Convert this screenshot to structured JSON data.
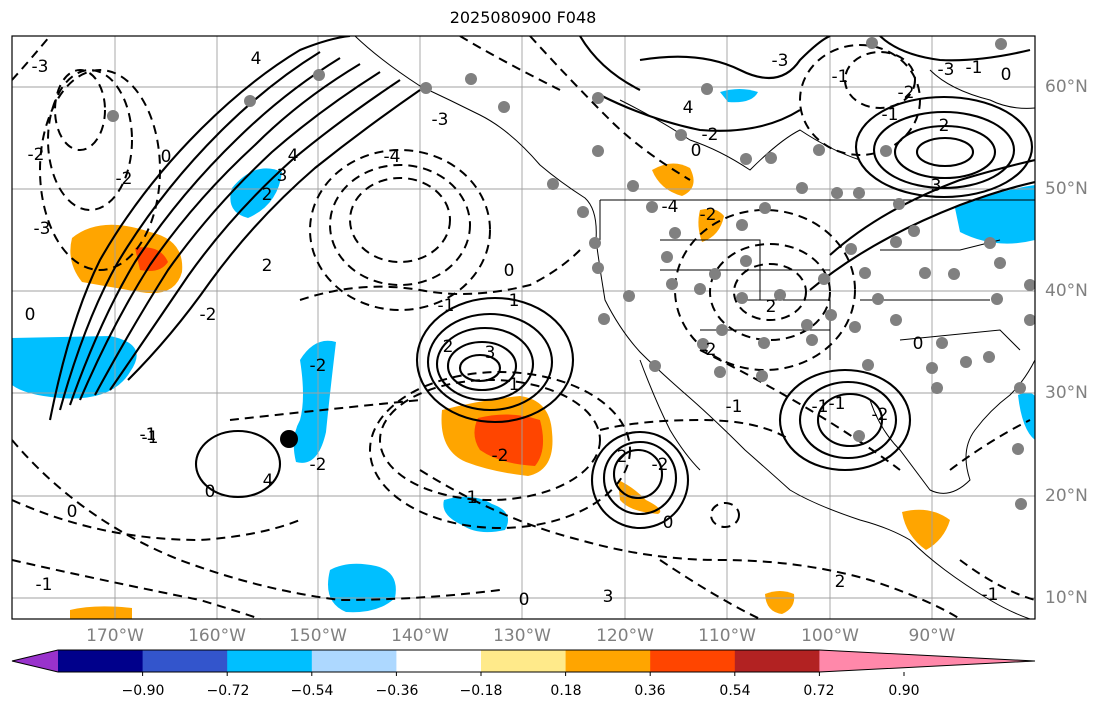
{
  "title": "2025080900 F048",
  "lon_labels": [
    "170°W",
    "160°W",
    "150°W",
    "140°W",
    "130°W",
    "120°W",
    "110°W",
    "100°W",
    "90°W"
  ],
  "lat_labels": [
    "60°N",
    "50°N",
    "40°N",
    "30°N",
    "20°N",
    "10°N"
  ],
  "colorbar": {
    "tick_labels": [
      "−0.90",
      "−0.72",
      "−0.54",
      "−0.36",
      "−0.18",
      "0.18",
      "0.36",
      "0.54",
      "0.72",
      "0.90"
    ],
    "colors": [
      "#9932cc",
      "#00008b",
      "#3355cc",
      "#00bfff",
      "#add8ff",
      "#ffffff",
      "#ffea8a",
      "#ffa500",
      "#ff4500",
      "#b22222",
      "#ff88aa"
    ]
  },
  "contour_labels": [
    "4",
    "-3",
    "-2",
    "0",
    "-3",
    "-2",
    "0",
    "-1",
    "0",
    "-1",
    "-3",
    "2",
    "-4",
    "-2",
    "-1",
    "-2",
    "0",
    "4",
    "3",
    "2",
    "0",
    "4",
    "-3",
    "-2",
    "-1",
    "0",
    "1",
    "2",
    "3",
    "-4",
    "-3",
    "-2",
    "-1",
    "-2",
    "-1",
    "0",
    "-1",
    "2",
    "3",
    "2",
    "-2",
    "-2",
    "2",
    "-2",
    "0",
    "-1",
    "-1",
    "-2",
    "0",
    "1",
    "2",
    "3",
    "4",
    "-1",
    "-2",
    "1",
    "0",
    "-1"
  ]
}
